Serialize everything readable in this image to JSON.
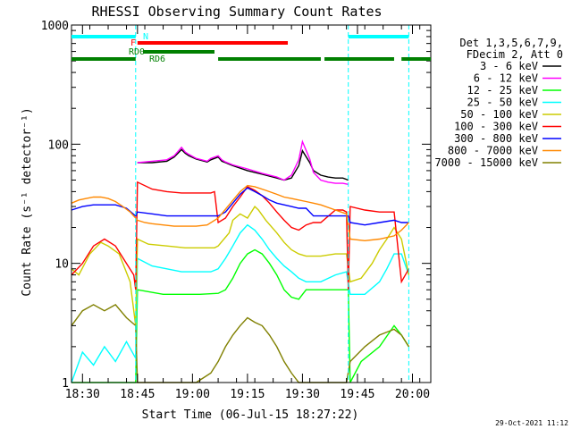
{
  "chart_data": {
    "type": "line",
    "title": "RHESSI Observing Summary Count Rates",
    "xlabel": "Start Time (06-Jul-15 18:27:22)",
    "ylabel": "Count Rate (s⁻¹ detector⁻¹)",
    "y_scale": "log",
    "ylim": [
      1,
      1000
    ],
    "xlim_minutes_after_1827": [
      0,
      98
    ],
    "x_tick_labels": [
      "18:30",
      "18:45",
      "19:00",
      "19:15",
      "19:30",
      "19:45",
      "20:00"
    ],
    "x_tick_minutes_after_1827": [
      3,
      18,
      33,
      48,
      63,
      78,
      93
    ],
    "y_tick_labels": [
      "1",
      "10",
      "100",
      "1000"
    ],
    "y_tick_values": [
      1,
      10,
      100,
      1000
    ],
    "legend": {
      "placement": "top-right",
      "header": [
        "Det 1,3,5,6,7,9,",
        "FDecim 2, Att 0"
      ]
    },
    "flags": [
      {
        "label": "N",
        "color": "#00ffff",
        "spans": [
          [
            0,
            17.5
          ],
          [
            75.5,
            92
          ]
        ]
      },
      {
        "label": "F",
        "color": "#ff0000",
        "spans": [
          [
            18,
            59
          ]
        ]
      },
      {
        "label": "RD0",
        "color": "#008000",
        "spans": [
          [
            19.5,
            39
          ]
        ]
      },
      {
        "label": "RD6",
        "color": "#008000",
        "spans": [
          [
            0,
            17.5
          ],
          [
            40,
            68
          ],
          [
            69,
            88
          ],
          [
            90,
            98
          ]
        ]
      }
    ],
    "boundaries_minutes": [
      17.5,
      75.5,
      92
    ],
    "footer_date": "29-Oct-2021 11:12",
    "series": [
      {
        "name": "3 - 6 keV",
        "color": "#000000",
        "x": [
          18,
          22,
          26,
          28,
          30,
          31,
          32,
          34,
          37,
          38,
          40,
          41,
          42,
          44,
          48,
          52,
          56,
          58,
          60,
          62,
          63,
          65,
          66,
          68,
          70,
          72,
          74,
          75.5
        ],
        "y": [
          70,
          70,
          72,
          78,
          90,
          84,
          80,
          75,
          71,
          74,
          78,
          72,
          70,
          66,
          60,
          56,
          52,
          50,
          52,
          66,
          88,
          70,
          60,
          55,
          53,
          52,
          52,
          50
        ]
      },
      {
        "name": "6 - 12 keV",
        "color": "#ff00ff",
        "x": [
          18,
          22,
          26,
          28,
          30,
          31,
          32,
          34,
          37,
          38,
          40,
          41,
          42,
          44,
          48,
          52,
          56,
          58,
          60,
          62,
          63,
          65,
          66,
          68,
          70,
          72,
          74,
          75.5
        ],
        "y": [
          70,
          72,
          74,
          80,
          94,
          86,
          82,
          76,
          72,
          76,
          80,
          74,
          71,
          67,
          62,
          57,
          53,
          50,
          55,
          74,
          105,
          75,
          58,
          50,
          48,
          47,
          47,
          46
        ]
      },
      {
        "name": "12 - 25 keV",
        "color": "#00ff00",
        "x": [
          0,
          6,
          12,
          17.5,
          18,
          25,
          35,
          40,
          42,
          44,
          46,
          48,
          50,
          52,
          54,
          56,
          58,
          60,
          62,
          64,
          68,
          72,
          75.5,
          76,
          79,
          84,
          88,
          90,
          92
        ],
        "y": [
          1,
          1,
          1,
          1,
          6,
          5.5,
          5.5,
          5.6,
          6,
          7.5,
          10,
          12,
          13,
          12,
          10,
          8,
          6,
          5.2,
          5,
          6,
          6,
          6,
          6,
          1,
          1.5,
          2,
          3,
          2.5,
          2
        ]
      },
      {
        "name": "25 - 50 keV",
        "color": "#00ffff",
        "x": [
          0,
          3,
          6,
          9,
          12,
          15,
          17.5,
          18,
          22,
          26,
          30,
          34,
          38,
          40,
          42,
          44,
          46,
          48,
          50,
          52,
          54,
          56,
          58,
          60,
          62,
          64,
          68,
          72,
          75,
          76,
          80,
          84,
          86,
          88,
          90,
          92
        ],
        "y": [
          1,
          1.8,
          1.4,
          2,
          1.5,
          2.2,
          1.6,
          11,
          9.5,
          9,
          8.5,
          8.5,
          8.5,
          9,
          11,
          14,
          18,
          21,
          19,
          16,
          13,
          11,
          9.5,
          8.5,
          7.5,
          7,
          7,
          8,
          8.5,
          5.5,
          5.5,
          7,
          9,
          12,
          12,
          8
        ]
      },
      {
        "name": "50 - 100 keV",
        "color": "#cccc00",
        "x": [
          0,
          2,
          5,
          8,
          10,
          13,
          16,
          17.5,
          18,
          21,
          26,
          31,
          36,
          39,
          40,
          43,
          44,
          46,
          48,
          50,
          51,
          53,
          56,
          58,
          60,
          62,
          64,
          68,
          72,
          75,
          76,
          79,
          82,
          84,
          86,
          88,
          90,
          92
        ],
        "y": [
          9,
          8,
          12,
          15,
          14,
          12,
          7,
          3,
          16,
          14.5,
          14,
          13.5,
          13.5,
          13.5,
          14,
          18,
          23,
          26,
          24,
          30,
          28,
          23,
          18,
          15,
          13,
          12,
          11.5,
          11.5,
          12,
          12,
          7,
          7.5,
          10,
          13,
          16,
          20,
          16,
          8
        ]
      },
      {
        "name": "100 - 300 keV",
        "color": "#ff0000",
        "x": [
          0,
          3,
          6,
          9,
          12,
          15,
          17,
          17.5,
          18,
          22,
          26,
          30,
          34,
          38,
          39,
          40,
          42,
          44,
          46,
          48,
          50,
          52,
          54,
          56,
          58,
          60,
          62,
          64,
          66,
          68,
          72,
          74,
          75,
          75.5,
          76,
          80,
          84,
          88,
          90,
          92
        ],
        "y": [
          8,
          10,
          14,
          16,
          14,
          10,
          8,
          6,
          48,
          42,
          40,
          39,
          39,
          39,
          40,
          22,
          24,
          30,
          36,
          44,
          41,
          37,
          32,
          27,
          23,
          20,
          19,
          21,
          22,
          22,
          28,
          28,
          27,
          6,
          30,
          28,
          27,
          27,
          7,
          9
        ]
      },
      {
        "name": "300 - 800 keV",
        "color": "#0000ff",
        "x": [
          0,
          3,
          6,
          9,
          12,
          15,
          17.5,
          18,
          22,
          26,
          30,
          34,
          38,
          40,
          42,
          44,
          46,
          48,
          50,
          52,
          54,
          56,
          58,
          60,
          62,
          64,
          66,
          68,
          72,
          74,
          75.5,
          76,
          80,
          84,
          88,
          90,
          92
        ],
        "y": [
          28,
          30,
          31,
          31,
          31,
          29,
          25,
          27,
          26,
          25,
          25,
          25,
          25,
          25,
          27,
          32,
          38,
          43,
          40,
          37,
          34,
          32,
          31,
          30,
          29,
          29,
          25,
          25,
          25,
          25,
          25,
          22,
          21,
          22,
          23,
          22,
          22
        ]
      },
      {
        "name": "800 - 7000 keV",
        "color": "#ff8800",
        "x": [
          0,
          2,
          4,
          6,
          8,
          10,
          12,
          14,
          16,
          17.5,
          18,
          20,
          22,
          25,
          28,
          31,
          34,
          37,
          40,
          43,
          46,
          48,
          50,
          53,
          56,
          58,
          60,
          62,
          64,
          66,
          68,
          72,
          75,
          76,
          80,
          84,
          88,
          90,
          92
        ],
        "y": [
          32,
          34,
          35,
          36,
          36,
          35,
          33,
          30,
          27,
          24,
          23,
          22,
          21.5,
          21,
          20.5,
          20.5,
          20.5,
          21,
          24,
          31,
          40,
          45,
          44,
          41,
          38,
          36,
          35,
          34,
          33,
          32,
          31,
          28,
          26,
          16,
          15.5,
          16,
          17,
          19,
          22
        ]
      },
      {
        "name": "7000 - 15000 keV",
        "color": "#808000",
        "x": [
          0,
          3,
          6,
          9,
          12,
          15,
          17.5,
          18,
          22,
          26,
          30,
          34,
          38,
          40,
          42,
          44,
          46,
          48,
          50,
          52,
          54,
          56,
          58,
          60,
          62,
          64,
          66,
          68,
          72,
          75,
          76,
          80,
          84,
          88,
          90,
          92
        ],
        "y": [
          3,
          4,
          4.5,
          4,
          4.5,
          3.5,
          3,
          1,
          1,
          1,
          1,
          1,
          1.2,
          1.5,
          2,
          2.5,
          3,
          3.5,
          3.2,
          3,
          2.5,
          2,
          1.5,
          1.2,
          1,
          1,
          1,
          1,
          1,
          1,
          1.5,
          2,
          2.5,
          2.8,
          2.5,
          2
        ]
      }
    ]
  }
}
